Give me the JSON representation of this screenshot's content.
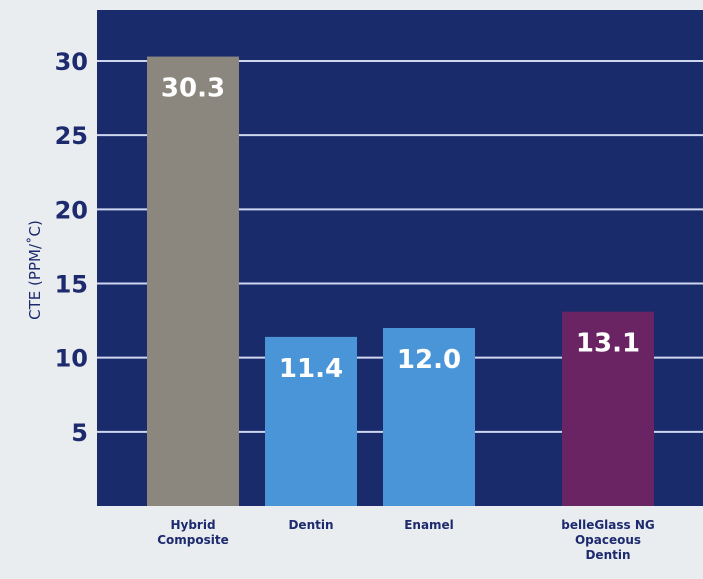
{
  "chart_data": {
    "type": "bar",
    "ylabel": "CTE (PPM/˚C)",
    "categories": [
      [
        "Hybrid",
        "Composite"
      ],
      [
        "Dentin"
      ],
      [
        "Enamel"
      ],
      [
        "belleGlass NG",
        "Opaceous",
        "Dentin"
      ]
    ],
    "values": [
      30.3,
      11.4,
      12.0,
      13.1
    ],
    "data_labels": [
      "30.3",
      "11.4",
      "12.0",
      "13.1"
    ],
    "bar_colors": [
      "#8b877e",
      "#4a95d8",
      "#4a95d8",
      "#6a2363"
    ],
    "ylim": [
      0,
      31
    ],
    "yticks": [
      5,
      10,
      15,
      20,
      25,
      30
    ],
    "grid": true,
    "plot_background": "#1a2b6c",
    "grid_color": "#cfd7ee",
    "axis_text_color": "#1d2a6e"
  }
}
